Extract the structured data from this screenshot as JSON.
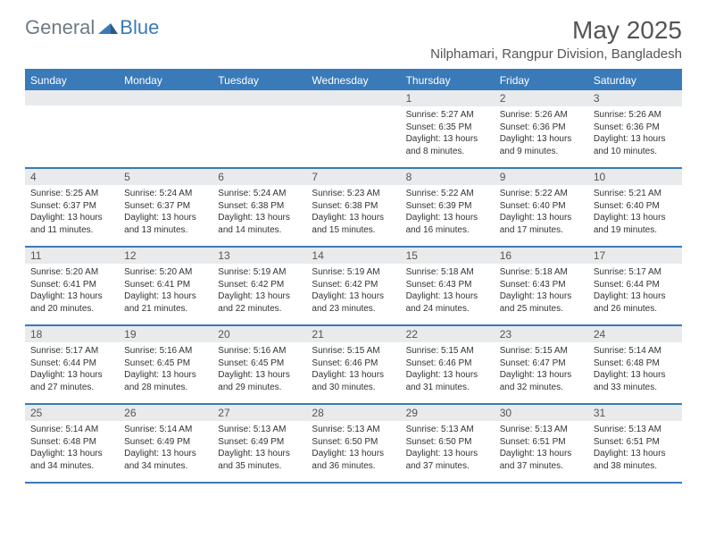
{
  "logo": {
    "text1": "General",
    "text2": "Blue"
  },
  "title": "May 2025",
  "location": "Nilphamari, Rangpur Division, Bangladesh",
  "colors": {
    "header_bg": "#3a7ab8",
    "header_text": "#ffffff",
    "daynum_bg": "#e8eaec",
    "border": "#3a7ab8",
    "page_bg": "#ffffff",
    "body_text": "#333333",
    "title_text": "#555555",
    "logo_gray": "#6e7a85",
    "logo_blue": "#3a7ab8"
  },
  "day_names": [
    "Sunday",
    "Monday",
    "Tuesday",
    "Wednesday",
    "Thursday",
    "Friday",
    "Saturday"
  ],
  "weeks": [
    [
      {
        "empty": true
      },
      {
        "empty": true
      },
      {
        "empty": true
      },
      {
        "empty": true
      },
      {
        "day": "1",
        "sunrise": "Sunrise: 5:27 AM",
        "sunset": "Sunset: 6:35 PM",
        "daylight": "Daylight: 13 hours and 8 minutes."
      },
      {
        "day": "2",
        "sunrise": "Sunrise: 5:26 AM",
        "sunset": "Sunset: 6:36 PM",
        "daylight": "Daylight: 13 hours and 9 minutes."
      },
      {
        "day": "3",
        "sunrise": "Sunrise: 5:26 AM",
        "sunset": "Sunset: 6:36 PM",
        "daylight": "Daylight: 13 hours and 10 minutes."
      }
    ],
    [
      {
        "day": "4",
        "sunrise": "Sunrise: 5:25 AM",
        "sunset": "Sunset: 6:37 PM",
        "daylight": "Daylight: 13 hours and 11 minutes."
      },
      {
        "day": "5",
        "sunrise": "Sunrise: 5:24 AM",
        "sunset": "Sunset: 6:37 PM",
        "daylight": "Daylight: 13 hours and 13 minutes."
      },
      {
        "day": "6",
        "sunrise": "Sunrise: 5:24 AM",
        "sunset": "Sunset: 6:38 PM",
        "daylight": "Daylight: 13 hours and 14 minutes."
      },
      {
        "day": "7",
        "sunrise": "Sunrise: 5:23 AM",
        "sunset": "Sunset: 6:38 PM",
        "daylight": "Daylight: 13 hours and 15 minutes."
      },
      {
        "day": "8",
        "sunrise": "Sunrise: 5:22 AM",
        "sunset": "Sunset: 6:39 PM",
        "daylight": "Daylight: 13 hours and 16 minutes."
      },
      {
        "day": "9",
        "sunrise": "Sunrise: 5:22 AM",
        "sunset": "Sunset: 6:40 PM",
        "daylight": "Daylight: 13 hours and 17 minutes."
      },
      {
        "day": "10",
        "sunrise": "Sunrise: 5:21 AM",
        "sunset": "Sunset: 6:40 PM",
        "daylight": "Daylight: 13 hours and 19 minutes."
      }
    ],
    [
      {
        "day": "11",
        "sunrise": "Sunrise: 5:20 AM",
        "sunset": "Sunset: 6:41 PM",
        "daylight": "Daylight: 13 hours and 20 minutes."
      },
      {
        "day": "12",
        "sunrise": "Sunrise: 5:20 AM",
        "sunset": "Sunset: 6:41 PM",
        "daylight": "Daylight: 13 hours and 21 minutes."
      },
      {
        "day": "13",
        "sunrise": "Sunrise: 5:19 AM",
        "sunset": "Sunset: 6:42 PM",
        "daylight": "Daylight: 13 hours and 22 minutes."
      },
      {
        "day": "14",
        "sunrise": "Sunrise: 5:19 AM",
        "sunset": "Sunset: 6:42 PM",
        "daylight": "Daylight: 13 hours and 23 minutes."
      },
      {
        "day": "15",
        "sunrise": "Sunrise: 5:18 AM",
        "sunset": "Sunset: 6:43 PM",
        "daylight": "Daylight: 13 hours and 24 minutes."
      },
      {
        "day": "16",
        "sunrise": "Sunrise: 5:18 AM",
        "sunset": "Sunset: 6:43 PM",
        "daylight": "Daylight: 13 hours and 25 minutes."
      },
      {
        "day": "17",
        "sunrise": "Sunrise: 5:17 AM",
        "sunset": "Sunset: 6:44 PM",
        "daylight": "Daylight: 13 hours and 26 minutes."
      }
    ],
    [
      {
        "day": "18",
        "sunrise": "Sunrise: 5:17 AM",
        "sunset": "Sunset: 6:44 PM",
        "daylight": "Daylight: 13 hours and 27 minutes."
      },
      {
        "day": "19",
        "sunrise": "Sunrise: 5:16 AM",
        "sunset": "Sunset: 6:45 PM",
        "daylight": "Daylight: 13 hours and 28 minutes."
      },
      {
        "day": "20",
        "sunrise": "Sunrise: 5:16 AM",
        "sunset": "Sunset: 6:45 PM",
        "daylight": "Daylight: 13 hours and 29 minutes."
      },
      {
        "day": "21",
        "sunrise": "Sunrise: 5:15 AM",
        "sunset": "Sunset: 6:46 PM",
        "daylight": "Daylight: 13 hours and 30 minutes."
      },
      {
        "day": "22",
        "sunrise": "Sunrise: 5:15 AM",
        "sunset": "Sunset: 6:46 PM",
        "daylight": "Daylight: 13 hours and 31 minutes."
      },
      {
        "day": "23",
        "sunrise": "Sunrise: 5:15 AM",
        "sunset": "Sunset: 6:47 PM",
        "daylight": "Daylight: 13 hours and 32 minutes."
      },
      {
        "day": "24",
        "sunrise": "Sunrise: 5:14 AM",
        "sunset": "Sunset: 6:48 PM",
        "daylight": "Daylight: 13 hours and 33 minutes."
      }
    ],
    [
      {
        "day": "25",
        "sunrise": "Sunrise: 5:14 AM",
        "sunset": "Sunset: 6:48 PM",
        "daylight": "Daylight: 13 hours and 34 minutes."
      },
      {
        "day": "26",
        "sunrise": "Sunrise: 5:14 AM",
        "sunset": "Sunset: 6:49 PM",
        "daylight": "Daylight: 13 hours and 34 minutes."
      },
      {
        "day": "27",
        "sunrise": "Sunrise: 5:13 AM",
        "sunset": "Sunset: 6:49 PM",
        "daylight": "Daylight: 13 hours and 35 minutes."
      },
      {
        "day": "28",
        "sunrise": "Sunrise: 5:13 AM",
        "sunset": "Sunset: 6:50 PM",
        "daylight": "Daylight: 13 hours and 36 minutes."
      },
      {
        "day": "29",
        "sunrise": "Sunrise: 5:13 AM",
        "sunset": "Sunset: 6:50 PM",
        "daylight": "Daylight: 13 hours and 37 minutes."
      },
      {
        "day": "30",
        "sunrise": "Sunrise: 5:13 AM",
        "sunset": "Sunset: 6:51 PM",
        "daylight": "Daylight: 13 hours and 37 minutes."
      },
      {
        "day": "31",
        "sunrise": "Sunrise: 5:13 AM",
        "sunset": "Sunset: 6:51 PM",
        "daylight": "Daylight: 13 hours and 38 minutes."
      }
    ]
  ]
}
